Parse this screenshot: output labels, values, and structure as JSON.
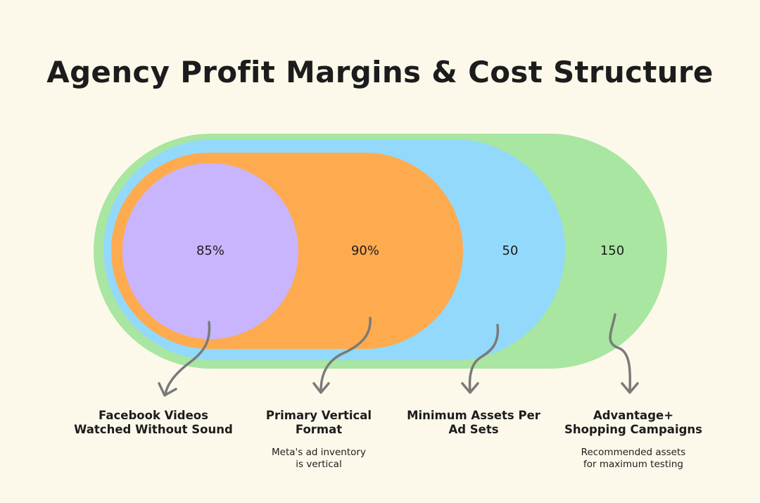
{
  "title": "Agency Profit Margins & Cost Structure",
  "colors": {
    "background": "#fdf9ea",
    "text": "#1c1c1c",
    "arrow": "#7a7a7a",
    "green": "#a8e6a1",
    "blue": "#93d9fb",
    "orange": "#feab50",
    "purple": "#c9b5fd"
  },
  "layers": [
    {
      "value": "85%",
      "label_line1": "Facebook Videos",
      "label_line2": "Watched Without Sound",
      "note_line1": "",
      "note_line2": "",
      "color": "#c9b5fd"
    },
    {
      "value": "90%",
      "label_line1": "Primary Vertical",
      "label_line2": "Format",
      "note_line1": "Meta's ad inventory",
      "note_line2": "is vertical",
      "color": "#feab50"
    },
    {
      "value": "50",
      "label_line1": "Minimum Assets Per",
      "label_line2": "Ad Sets",
      "note_line1": "",
      "note_line2": "",
      "color": "#93d9fb"
    },
    {
      "value": "150",
      "label_line1": "Advantage+",
      "label_line2": "Shopping Campaigns",
      "note_line1": "Recommended assets",
      "note_line2": "for maximum testing",
      "color": "#a8e6a1"
    }
  ]
}
